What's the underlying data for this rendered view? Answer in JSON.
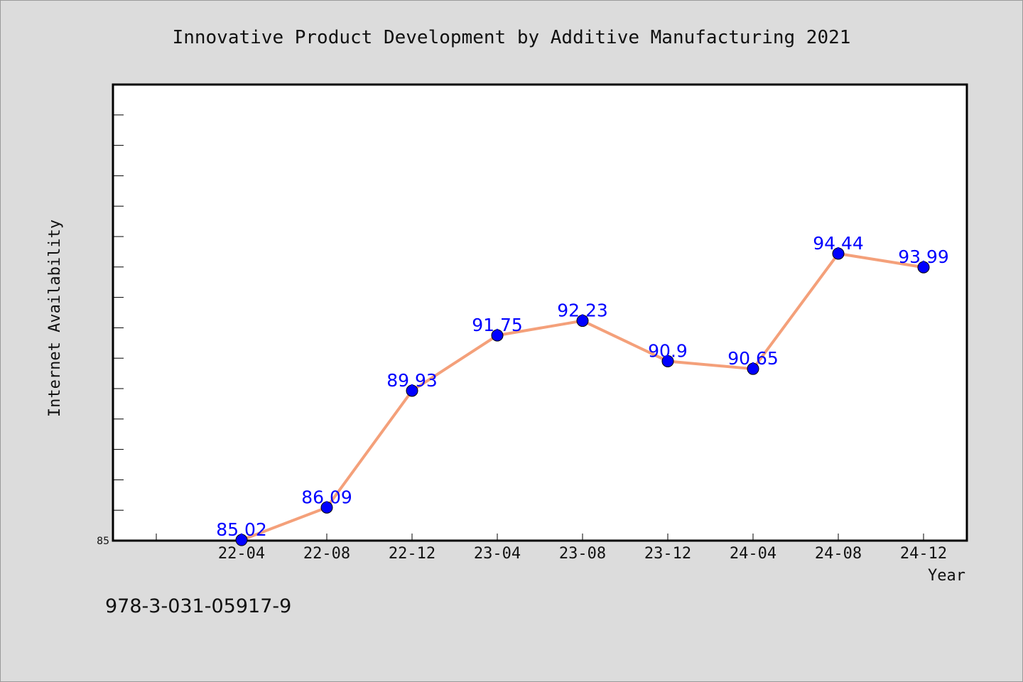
{
  "chart_data": {
    "type": "line",
    "title": "Innovative Product Development by Additive Manufacturing 2021",
    "xlabel": "Year",
    "ylabel": "Internet Availability",
    "categories": [
      "22-04",
      "22-08",
      "22-12",
      "23-04",
      "23-08",
      "23-12",
      "24-04",
      "24-08",
      "24-12"
    ],
    "series": [
      {
        "values": [
          85.02,
          86.09,
          89.93,
          91.75,
          92.23,
          90.9,
          90.65,
          94.44,
          93.99
        ],
        "labels": [
          "85.02",
          "86.09",
          "89.93",
          "91.75",
          "92.23",
          "90.9",
          "90.65",
          "94.44",
          "93.99"
        ]
      }
    ],
    "yticks": [
      "85"
    ],
    "ylim": [
      85,
      100
    ],
    "grid": false,
    "colors": {
      "line": "#f4a07a",
      "marker": "#0000ff",
      "data_label": "#0000ff",
      "background": "#dcdcdc",
      "plot_background": "#ffffff"
    }
  },
  "footer": {
    "isbn": "978-3-031-05917-9"
  }
}
